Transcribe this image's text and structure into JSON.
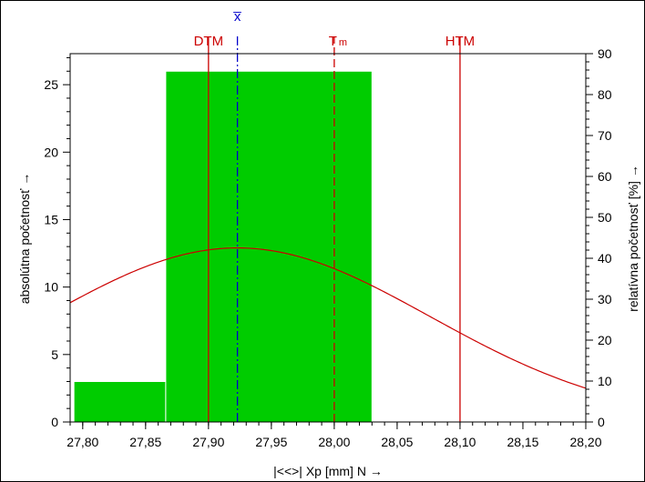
{
  "chart_data": {
    "type": "bar",
    "title": "",
    "xlabel": "|<<>|  Xp [mm]  N →",
    "ylabel_left": "absolútna početnosť →",
    "ylabel_right": "relatívna početnosť  [%] →",
    "xlim": [
      27.79,
      28.2
    ],
    "ylim_left": [
      0,
      27.3
    ],
    "ylim_right": [
      0,
      90
    ],
    "x_ticks": [
      27.8,
      27.85,
      27.9,
      27.95,
      28.0,
      28.05,
      28.1,
      28.15,
      28.2
    ],
    "x_tick_labels": [
      "27,80",
      "27,85",
      "27,90",
      "27,95",
      "28,00",
      "28,05",
      "28,10",
      "28,15",
      "28,20"
    ],
    "y_left_ticks": [
      0,
      5,
      10,
      15,
      20,
      25
    ],
    "y_left_tick_labels": [
      "0",
      "5",
      "10",
      "15",
      "20",
      "25"
    ],
    "y_right_ticks": [
      0,
      10,
      20,
      30,
      40,
      50,
      60,
      70,
      80,
      90
    ],
    "y_right_tick_labels": [
      "0",
      "10",
      "20",
      "30",
      "40",
      "50",
      "60",
      "70",
      "80",
      "90"
    ],
    "bins": [
      {
        "start": 27.793,
        "end": 27.866,
        "count": 3
      },
      {
        "start": 27.866,
        "end": 28.03,
        "count": 26
      }
    ],
    "normal_curve": {
      "mean": 27.923,
      "sd": 0.153,
      "peak": 12.9
    },
    "markers": [
      {
        "name": "DTM",
        "sub": "",
        "x": 27.9,
        "style": "solid",
        "color": "#cc0000"
      },
      {
        "name": "x̅",
        "sub": "",
        "x": 27.923,
        "style": "dashdot",
        "color": "#0000cc"
      },
      {
        "name": "T",
        "sub": "m",
        "x": 28.0,
        "style": "dashed",
        "color": "#cc0000"
      },
      {
        "name": "HTM",
        "sub": "",
        "x": 28.1,
        "style": "solid",
        "color": "#cc0000"
      }
    ],
    "colors": {
      "bar": "#00cc00",
      "bar_edge": "#ffffff",
      "curve": "#cc0000",
      "axis": "#000000"
    }
  }
}
